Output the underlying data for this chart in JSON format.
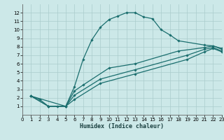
{
  "xlabel": "Humidex (Indice chaleur)",
  "xlim": [
    0,
    23
  ],
  "ylim": [
    0,
    13
  ],
  "xticks": [
    0,
    1,
    2,
    3,
    4,
    5,
    6,
    7,
    8,
    9,
    10,
    11,
    12,
    13,
    14,
    15,
    16,
    17,
    18,
    19,
    20,
    21,
    22,
    23
  ],
  "yticks": [
    1,
    2,
    3,
    4,
    5,
    6,
    7,
    8,
    9,
    10,
    11,
    12
  ],
  "bg_color": "#cce8e8",
  "grid_color": "#aacccc",
  "line_color": "#1a6e6e",
  "lines": [
    {
      "x": [
        1,
        2,
        3,
        4,
        5,
        6,
        7,
        8,
        9,
        10,
        11,
        12,
        13,
        14,
        15,
        16,
        17,
        18,
        21,
        22,
        23
      ],
      "y": [
        2.2,
        1.8,
        1.0,
        1.0,
        1.0,
        3.3,
        6.5,
        8.8,
        10.3,
        11.2,
        11.6,
        12.0,
        12.0,
        11.5,
        11.3,
        10.0,
        9.4,
        8.7,
        8.2,
        8.1,
        7.8
      ]
    },
    {
      "x": [
        1,
        5,
        6,
        7,
        10,
        13,
        18,
        21,
        22,
        23
      ],
      "y": [
        2.2,
        1.0,
        2.8,
        3.5,
        5.5,
        6.0,
        7.5,
        7.9,
        8.1,
        7.7
      ]
    },
    {
      "x": [
        1,
        3,
        5,
        6,
        9,
        13,
        19,
        21,
        22,
        23
      ],
      "y": [
        2.2,
        1.0,
        1.0,
        2.3,
        4.2,
        5.3,
        7.0,
        7.7,
        7.9,
        7.5
      ]
    },
    {
      "x": [
        1,
        3,
        5,
        6,
        9,
        13,
        19,
        21,
        22,
        23
      ],
      "y": [
        2.2,
        1.0,
        1.0,
        1.8,
        3.7,
        4.8,
        6.5,
        7.4,
        7.8,
        7.4
      ]
    }
  ]
}
